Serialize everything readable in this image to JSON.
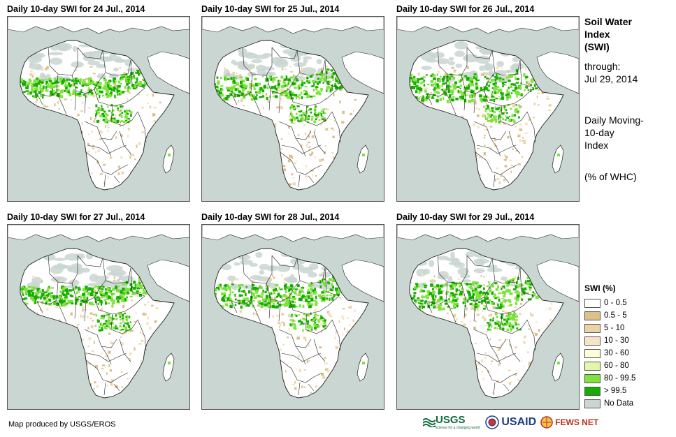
{
  "panels": [
    {
      "title": "Daily 10-day  SWI for 24 Jul., 2014"
    },
    {
      "title": "Daily 10-day  SWI for 25 Jul., 2014"
    },
    {
      "title": "Daily 10-day  SWI for 26 Jul., 2014"
    },
    {
      "title": "Daily 10-day  SWI for 27 Jul., 2014"
    },
    {
      "title": "Daily 10-day  SWI for 28 Jul., 2014"
    },
    {
      "title": "Daily 10-day  SWI for 29 Jul., 2014"
    }
  ],
  "side": {
    "title_line1": "Soil Water",
    "title_line2": "Index",
    "title_line3": "(SWI)",
    "through_label": "through:",
    "through_date": "Jul 29, 2014",
    "desc_line1": "Daily Moving-",
    "desc_line2": "10-day",
    "desc_line3": "Index",
    "units": "(% of WHC)"
  },
  "legend": {
    "title": "SWI (%)",
    "items": [
      {
        "label": "0 - 0.5",
        "color": "#ffffff"
      },
      {
        "label": "0.5 - 5",
        "color": "#dcc08a"
      },
      {
        "label": "5 - 10",
        "color": "#ebd3a7"
      },
      {
        "label": "10 - 30",
        "color": "#f6e4c6"
      },
      {
        "label": "30 - 60",
        "color": "#fdfdd9"
      },
      {
        "label": "60 - 80",
        "color": "#e3f7a8"
      },
      {
        "label": "80 - 99.5",
        "color": "#7ee33a"
      },
      {
        "label": "> 99.5",
        "color": "#14ad00"
      },
      {
        "label": "No Data",
        "color": "#c9d6d2"
      }
    ]
  },
  "footer": {
    "credit": "Map produced by USGS/EROS",
    "usgs": "USGS",
    "usgs_tagline": "science for a changing world",
    "usaid": "USAID",
    "fews": "FEWS NET"
  },
  "colors": {
    "ocean": "#c9d6d2",
    "land": "#ffffff",
    "border": "#222222",
    "tan": "#ebd3a7",
    "dark_tan": "#dcc08a",
    "light_tan": "#f6e4c6",
    "light_green": "#7ee33a",
    "green": "#14ad00",
    "nodata": "#c9d6d2"
  }
}
